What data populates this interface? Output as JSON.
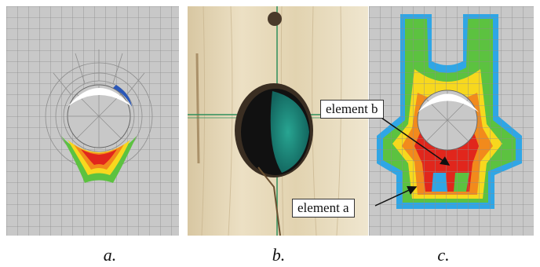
{
  "captions": {
    "a": "a.",
    "b": "b.",
    "c": "c."
  },
  "annotations": {
    "element_b": "element b",
    "element_a": "element a"
  },
  "colors": {
    "mesh_background": "#c8c8c8",
    "mesh_lines": "#8d8d8d",
    "wood": "#e3d4b2",
    "grid_line": "#2e8f5c",
    "hole_fill": "#1f9c8c",
    "stress_high": "#e1261c",
    "stress_mid": "#f7d81e",
    "stress_low": "#5cc240",
    "stress_lowest": "#2fa6e6"
  }
}
